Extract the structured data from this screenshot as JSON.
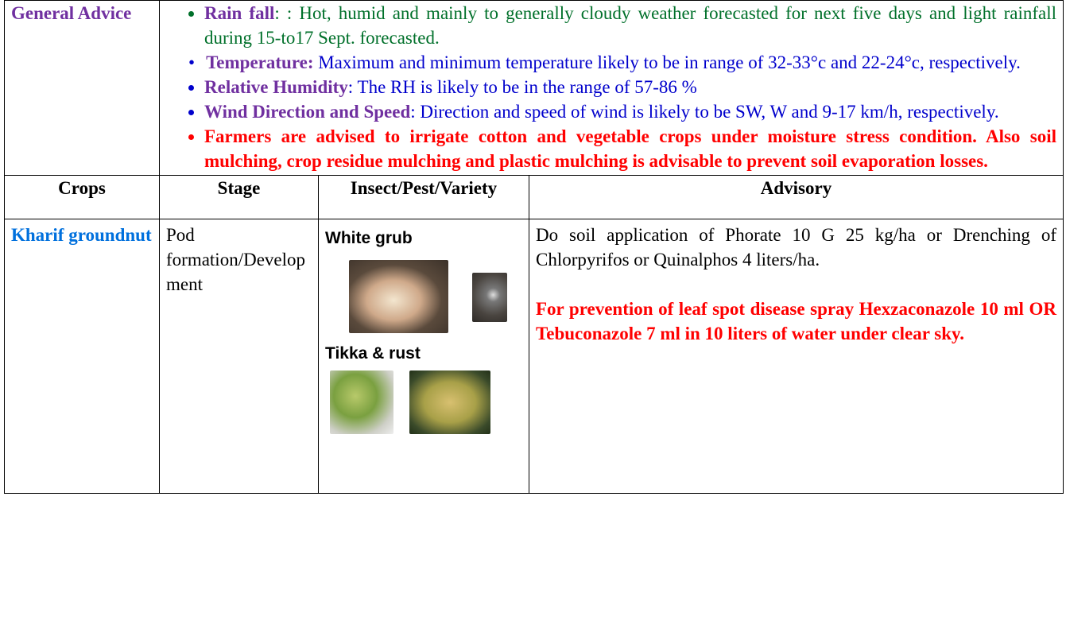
{
  "general": {
    "label": "General Advice",
    "bullets": [
      {
        "label": "Rain fall",
        "text": ": : Hot, humid and mainly to generally cloudy weather forecasted for next five days and light rainfall  during 15-to17 Sept. forecasted."
      },
      {
        "label": "Temperature:",
        "text": " Maximum and minimum temperature likely to be in range of 32-33°c and 22-24°c, respectively."
      },
      {
        "label": "Relative Humidity",
        "text": ": The RH is likely to be in the range of  57-86 %"
      },
      {
        "label": "Wind Direction and Speed",
        "text": ": Direction and speed of wind is likely to be SW, W and 9-17 km/h, respectively."
      },
      {
        "label": "",
        "text": "Farmers are advised to irrigate cotton and vegetable crops under moisture stress condition. Also soil mulching, crop residue mulching and plastic mulching is advisable to prevent soil evaporation losses."
      }
    ]
  },
  "table": {
    "headers": [
      "Crops",
      "Stage",
      "Insect/Pest/Variety",
      "Advisory"
    ],
    "rows": [
      {
        "crop": "Kharif groundnut",
        "stage": "Pod formation/Development",
        "pests": [
          "White grub",
          "Tikka & rust"
        ],
        "advisory": [
          "Do soil application of Phorate 10 G 25 kg/ha or Drenching of Chlorpyrifos or Quinalphos 4 liters/ha.",
          "For prevention of leaf spot disease spray Hexzaconazole 10 ml OR Tebuconazole 7 ml in 10 liters of water under clear sky."
        ]
      }
    ]
  }
}
